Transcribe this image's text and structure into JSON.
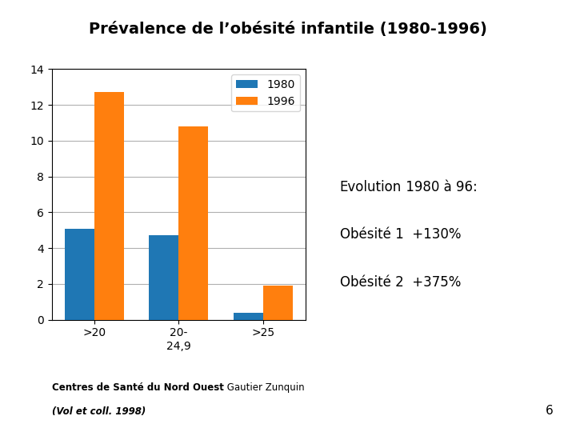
{
  "chart_data": {
    "type": "bar",
    "title": "Prévalence de l’obésité infantile (1980-1996)",
    "categories": [
      ">20",
      "20-\n24,9",
      ">25"
    ],
    "series": [
      {
        "name": "1980",
        "values": [
          5.1,
          4.7,
          0.4
        ]
      },
      {
        "name": "1996",
        "values": [
          12.7,
          10.8,
          1.9
        ]
      }
    ],
    "ylim": [
      0,
      14
    ],
    "yticks": [
      0,
      2,
      4,
      6,
      8,
      10,
      12,
      14
    ],
    "grid": true,
    "legend": "upper right",
    "annotations": [
      [
        "Evolution",
        " 1980 à 96:"
      ],
      [
        "Obésité 1  +130%"
      ],
      [
        "Obésité 2  +375%"
      ]
    ],
    "footnotes": [
      [
        "Centres de Santé du Nord Ouest",
        " Gautier Zunquin"
      ],
      [
        "(Vol et coll. 1998)"
      ]
    ],
    "page_number": "6"
  }
}
